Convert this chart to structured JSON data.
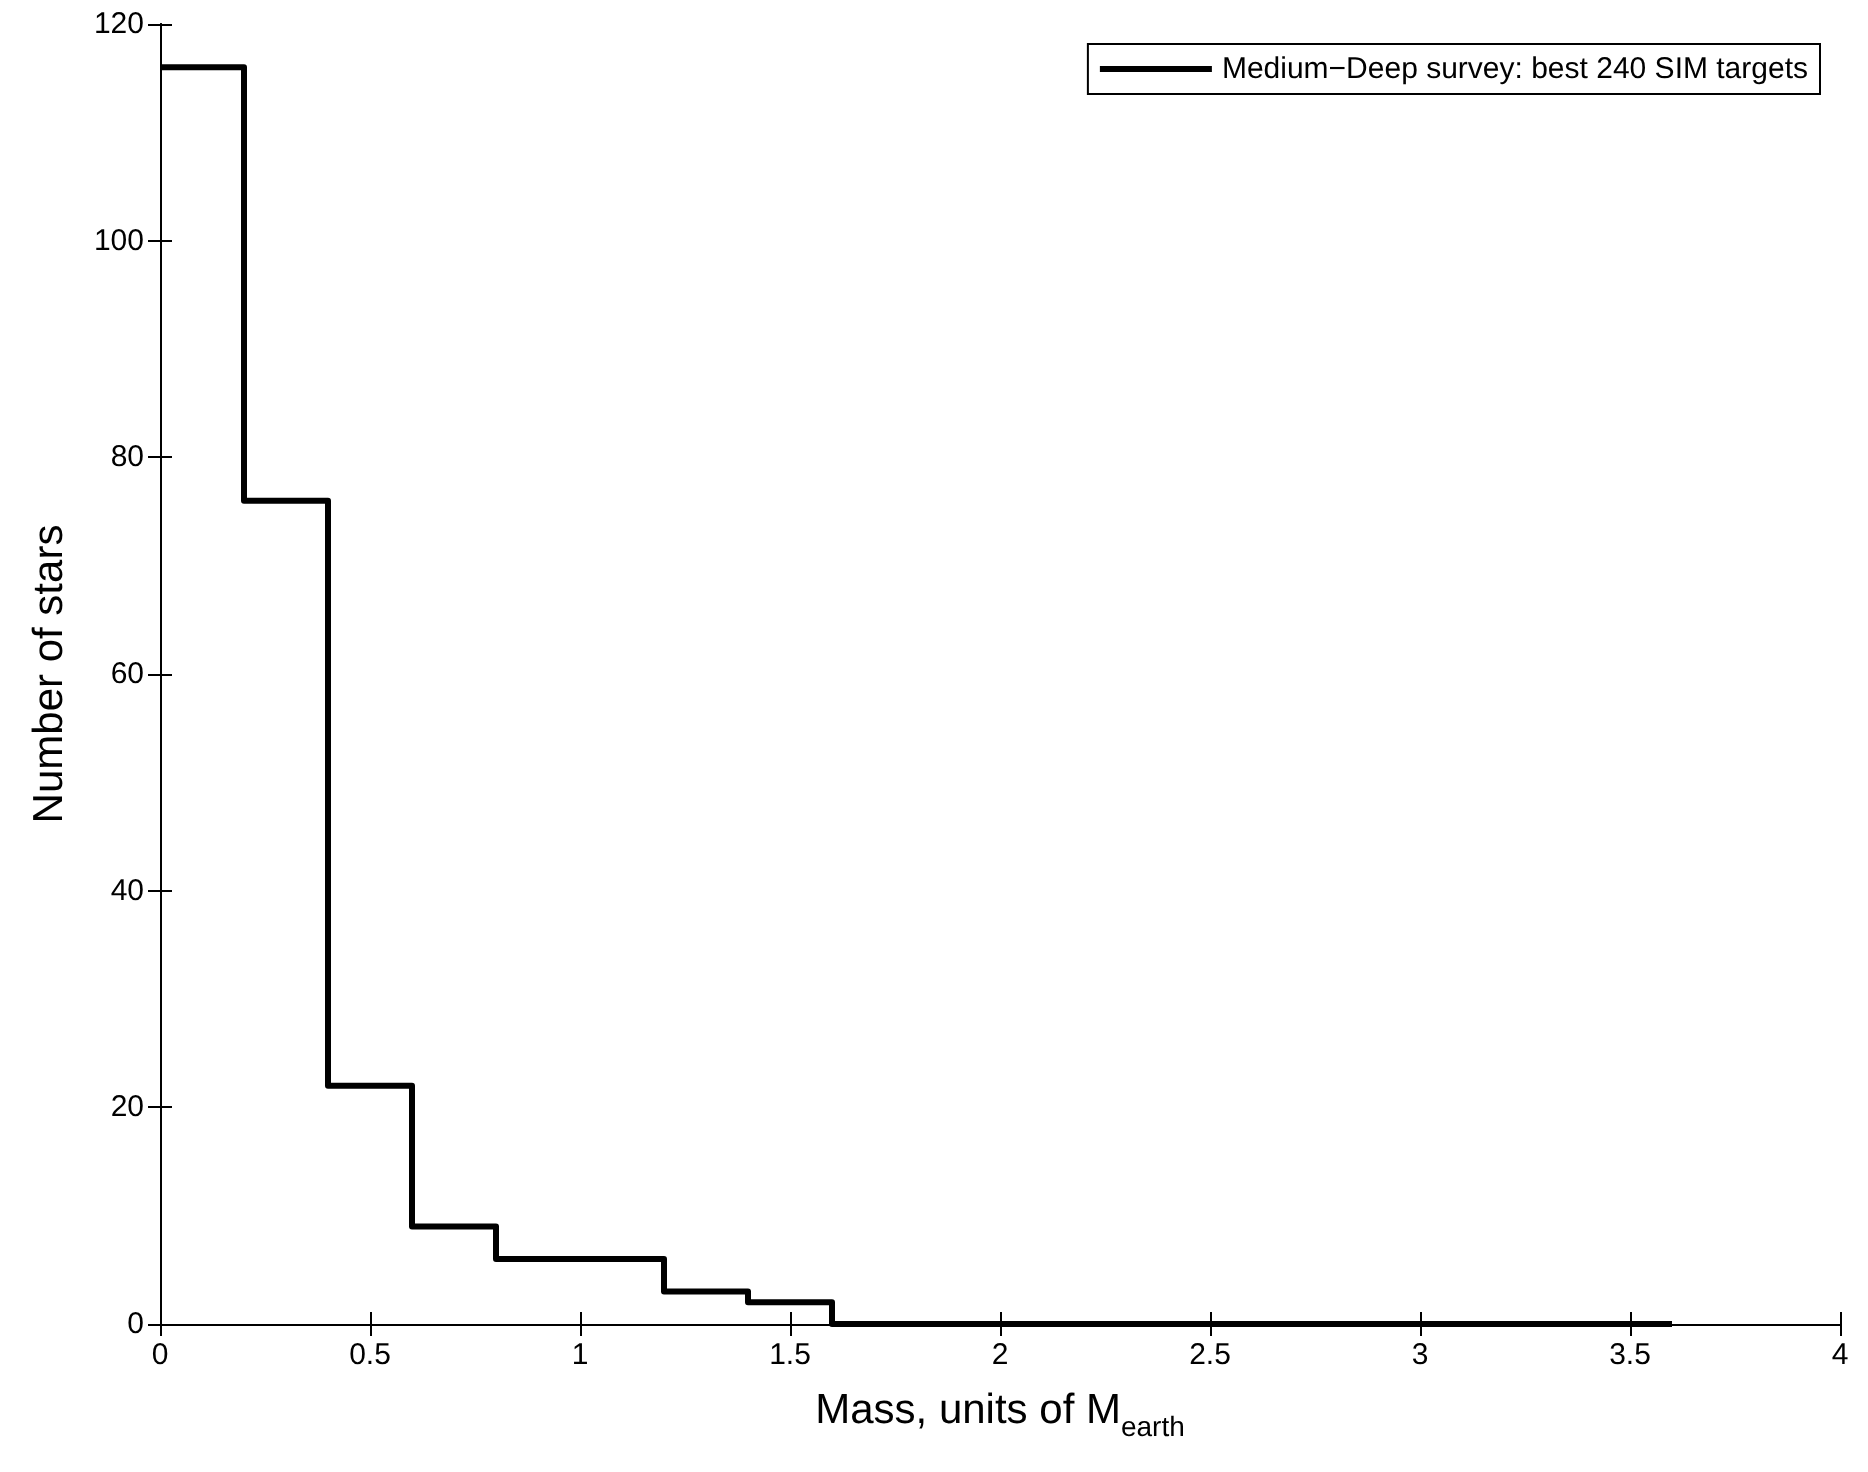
{
  "chart_data": {
    "type": "histogram",
    "xlabel": "Mass, units of M$_{earth}$",
    "ylabel": "Number of stars",
    "bins": [
      0,
      0.2,
      0.4,
      0.6,
      0.8,
      1.0,
      1.2,
      1.4,
      1.6,
      1.8,
      2.0,
      2.2,
      2.4,
      2.6,
      2.8,
      3.0,
      3.2,
      3.4,
      3.6
    ],
    "series": [
      {
        "name": "Medium−Deep survey: best 240 SIM targets",
        "color": "#000000",
        "values": [
          116,
          76,
          22,
          9,
          6,
          6,
          3,
          2,
          0,
          0,
          0,
          0,
          0,
          0,
          0,
          0,
          0,
          0
        ]
      }
    ],
    "xlim": [
      0,
      4
    ],
    "xticks": [
      0,
      0.5,
      1,
      1.5,
      2,
      2.5,
      3,
      3.5,
      4
    ],
    "ylim": [
      0,
      120
    ],
    "yticks": [
      0,
      20,
      40,
      60,
      80,
      100,
      120
    ],
    "grid": false,
    "legend": "top right",
    "line_style": "solid"
  }
}
